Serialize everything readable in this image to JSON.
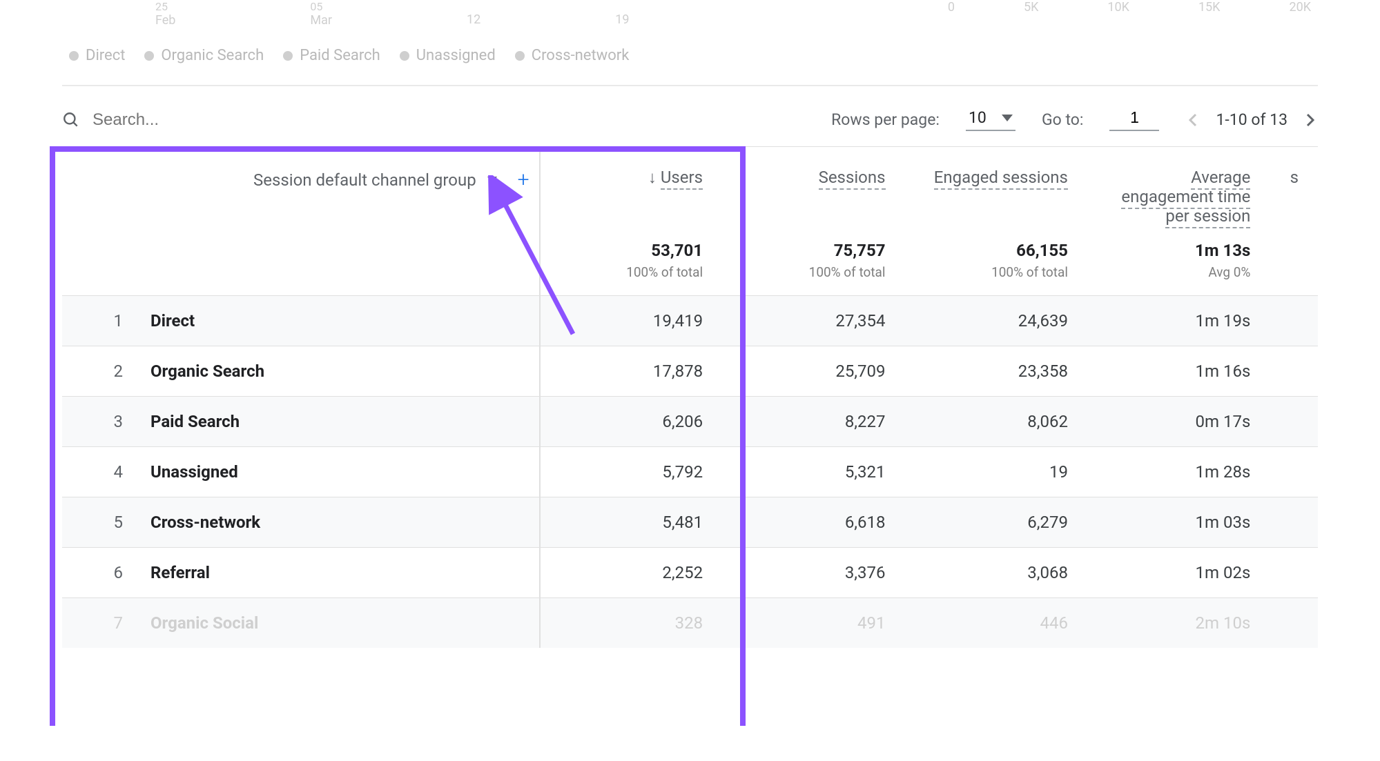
{
  "chart": {
    "x_labels": [
      "Feb",
      "Mar"
    ],
    "x_label_prefix_0": "25",
    "x_label_prefix_1": "05",
    "right_labels": [
      "0",
      "5K",
      "10K",
      "15K",
      "20K"
    ]
  },
  "legend": {
    "items": [
      "Direct",
      "Organic Search",
      "Paid Search",
      "Unassigned",
      "Cross-network"
    ],
    "dot_color": "#cfcfcf"
  },
  "toolbar": {
    "search_placeholder": "Search...",
    "rows_per_page_label": "Rows per page:",
    "rows_per_page_value": "10",
    "goto_label": "Go to:",
    "goto_value": "1",
    "page_info": "1-10 of 13"
  },
  "annotation": {
    "highlight_color": "#8c52ff",
    "arrow_color": "#8c52ff"
  },
  "table": {
    "dimension_label": "Session default channel group",
    "columns": [
      {
        "label": "Users",
        "sorted": true
      },
      {
        "label": "Sessions",
        "sorted": false
      },
      {
        "label": "Engaged sessions",
        "sorted": false
      },
      {
        "label": "Average engagement time per session",
        "sorted": false
      }
    ],
    "summary": {
      "users": {
        "value": "53,701",
        "sub": "100% of total"
      },
      "sessions": {
        "value": "75,757",
        "sub": "100% of total"
      },
      "engaged": {
        "value": "66,155",
        "sub": "100% of total"
      },
      "avgtime": {
        "value": "1m 13s",
        "sub": "Avg 0%"
      }
    },
    "rows": [
      {
        "idx": "1",
        "name": "Direct",
        "users": "19,419",
        "sessions": "27,354",
        "engaged": "24,639",
        "avgtime": "1m 19s",
        "alt": true
      },
      {
        "idx": "2",
        "name": "Organic Search",
        "users": "17,878",
        "sessions": "25,709",
        "engaged": "23,358",
        "avgtime": "1m 16s",
        "alt": false
      },
      {
        "idx": "3",
        "name": "Paid Search",
        "users": "6,206",
        "sessions": "8,227",
        "engaged": "8,062",
        "avgtime": "0m 17s",
        "alt": true
      },
      {
        "idx": "4",
        "name": "Unassigned",
        "users": "5,792",
        "sessions": "5,321",
        "engaged": "19",
        "avgtime": "1m 28s",
        "alt": false
      },
      {
        "idx": "5",
        "name": "Cross-network",
        "users": "5,481",
        "sessions": "6,618",
        "engaged": "6,279",
        "avgtime": "1m 03s",
        "alt": true
      },
      {
        "idx": "6",
        "name": "Referral",
        "users": "2,252",
        "sessions": "3,376",
        "engaged": "3,068",
        "avgtime": "1m 02s",
        "alt": false
      },
      {
        "idx": "7",
        "name": "Organic Social",
        "users": "328",
        "sessions": "491",
        "engaged": "446",
        "avgtime": "2m 10s",
        "alt": true,
        "faded": true
      }
    ]
  }
}
